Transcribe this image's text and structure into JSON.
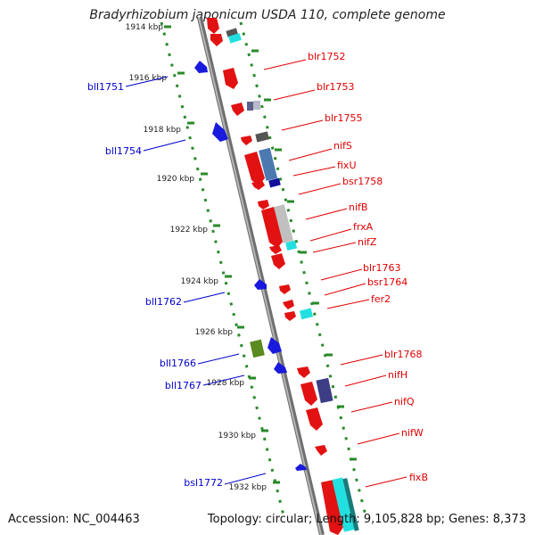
{
  "title": "Bradyrhizobium japonicum USDA 110, complete genome",
  "accession": "Accession: NC_004463",
  "summary": "Topology: circular; Length: 9,105,828 bp; Genes: 8,373",
  "colors": {
    "forward_label": "#e00000",
    "reverse_label": "#0000cc",
    "ruler_dots": "#2a8a2a",
    "backbone": "#8c8c8c",
    "tick_text": "#222222"
  },
  "ruler_ticks": [
    "1914 kbp",
    "1916 kbp",
    "1918 kbp",
    "1920 kbp",
    "1922 kbp",
    "1924 kbp",
    "1926 kbp",
    "1928 kbp",
    "1930 kbp",
    "1932 kbp"
  ],
  "forward_labels": [
    "blr1752",
    "blr1753",
    "blr1755",
    "nifS",
    "fixU",
    "bsr1758",
    "nifB",
    "frxA",
    "nifZ",
    "blr1763",
    "bsr1764",
    "fer2",
    "blr1768",
    "nifH",
    "nifQ",
    "nifW",
    "fixB"
  ],
  "reverse_labels": [
    "bll1751",
    "bll1754",
    "bll1762",
    "bll1766",
    "bll1767",
    "bsl1772"
  ]
}
